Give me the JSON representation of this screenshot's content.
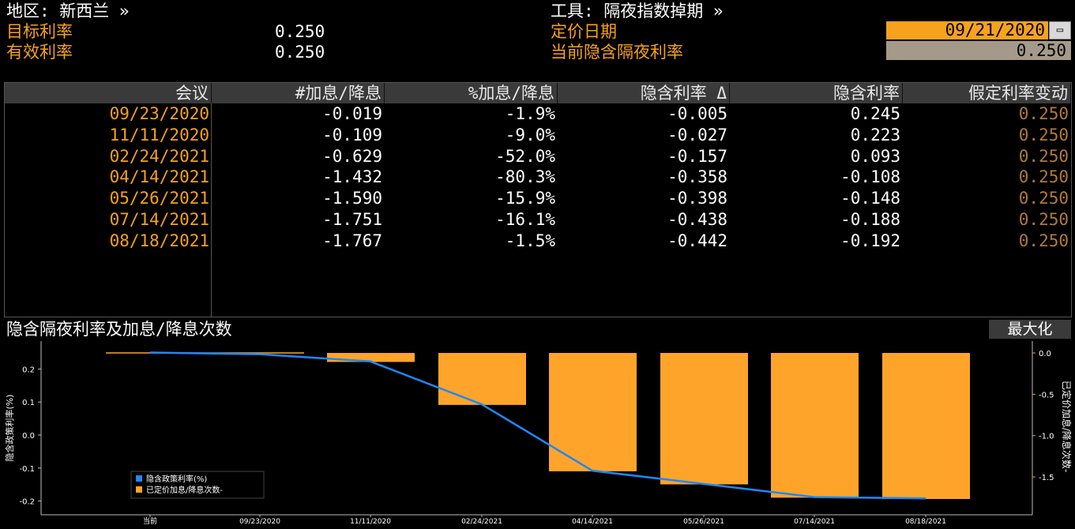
{
  "header": {
    "region_label": "地区: 新西兰 »",
    "target_rate_label": "目标利率",
    "target_rate_value": "0.250",
    "effective_rate_label": "有效利率",
    "effective_rate_value": "0.250",
    "instrument_label": "工具: 隔夜指数掉期 »",
    "pricing_date_label": "定价日期",
    "pricing_date_value": "09/21/2020",
    "implied_rate_label": "当前隐含隔夜利率",
    "implied_rate_value": "0.250"
  },
  "table": {
    "columns": [
      "会议",
      "#加息/降息",
      "%加息/降息",
      "隐含利率 Δ",
      "隐含利率",
      "假定利率变动"
    ],
    "rows": [
      [
        "09/23/2020",
        "-0.019",
        "-1.9%",
        "-0.005",
        "0.245",
        "0.250"
      ],
      [
        "11/11/2020",
        "-0.109",
        "-9.0%",
        "-0.027",
        "0.223",
        "0.250"
      ],
      [
        "02/24/2021",
        "-0.629",
        "-52.0%",
        "-0.157",
        "0.093",
        "0.250"
      ],
      [
        "04/14/2021",
        "-1.432",
        "-80.3%",
        "-0.358",
        "-0.108",
        "0.250"
      ],
      [
        "05/26/2021",
        "-1.590",
        "-15.9%",
        "-0.398",
        "-0.148",
        "0.250"
      ],
      [
        "07/14/2021",
        "-1.751",
        "-16.1%",
        "-0.438",
        "-0.188",
        "0.250"
      ],
      [
        "08/18/2021",
        "-1.767",
        "-1.5%",
        "-0.442",
        "-0.192",
        "0.250"
      ]
    ]
  },
  "chart_panel": {
    "title": "隐含隔夜利率及加息/降息次数",
    "maximize_label": "最大化"
  },
  "colors": {
    "accent_orange": "#f6a21e",
    "line_blue": "#1e88ff",
    "bar_orange": "#ffa42a"
  },
  "chart_data": {
    "type": "bar",
    "categories": [
      "当前",
      "09/23/2020",
      "11/11/2020",
      "02/24/2021",
      "04/14/2021",
      "05/26/2021",
      "07/14/2021",
      "08/18/2021"
    ],
    "series": [
      {
        "name": "隐含政策利率(%)",
        "type": "line",
        "axis": "left",
        "values": [
          0.25,
          0.245,
          0.223,
          0.093,
          -0.108,
          -0.148,
          -0.188,
          -0.192
        ]
      },
      {
        "name": "已定价加息/降息次数-",
        "type": "bar",
        "axis": "right",
        "values": [
          0.0,
          -0.019,
          -0.109,
          -0.629,
          -1.432,
          -1.59,
          -1.751,
          -1.767
        ]
      }
    ],
    "ylabel": "隐含政策利率(%)",
    "y2label": "已定价加息/降息次数-",
    "ylim": [
      -0.22,
      0.27
    ],
    "y2lim": [
      -1.96,
      0.1
    ],
    "yticks": [
      "0.2",
      "0.1",
      "0.0",
      "-0.1",
      "-0.2"
    ],
    "y2ticks": [
      "0.0",
      "-0.5",
      "-1.0",
      "-1.5"
    ],
    "legend": "bottom-left",
    "grid": false
  }
}
